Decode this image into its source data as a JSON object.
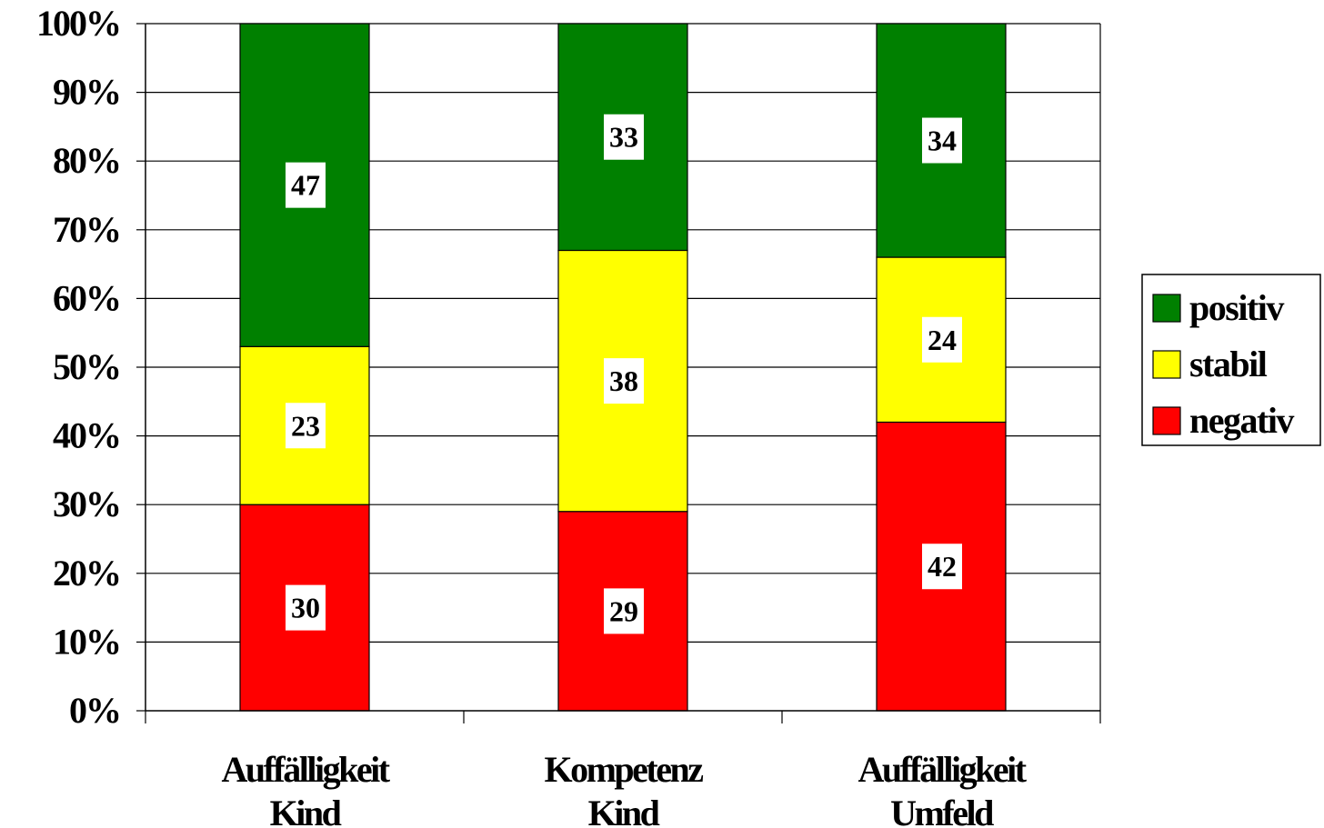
{
  "chart_data": {
    "type": "bar",
    "stacked": true,
    "percent_stacked": true,
    "title": "",
    "xlabel": "",
    "ylabel": "",
    "ylim": [
      0,
      100
    ],
    "yticks": [
      "0%",
      "10%",
      "20%",
      "30%",
      "40%",
      "50%",
      "60%",
      "70%",
      "80%",
      "90%",
      "100%"
    ],
    "grid": "horizontal",
    "legend_position": "right",
    "categories": [
      [
        "Auffälligkeit",
        "Kind"
      ],
      [
        "Kompetenz",
        "Kind"
      ],
      [
        "Auffälligkeit",
        "Umfeld"
      ]
    ],
    "series": [
      {
        "name": "negativ",
        "color": "#ff0000",
        "values": [
          30,
          29,
          42
        ]
      },
      {
        "name": "stabil",
        "color": "#ffff00",
        "values": [
          23,
          38,
          24
        ]
      },
      {
        "name": "positiv",
        "color": "#008000",
        "values": [
          47,
          33,
          34
        ]
      }
    ],
    "legend_order": [
      "positiv",
      "stabil",
      "negativ"
    ]
  }
}
